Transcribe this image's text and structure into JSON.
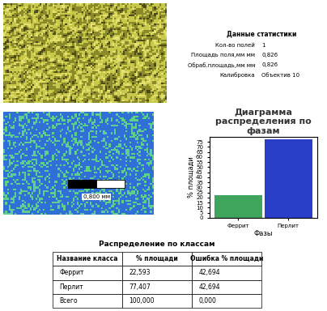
{
  "statistics": {
    "title": "Данные статистики",
    "rows": [
      [
        "Кол-во полей",
        "1"
      ],
      [
        "Площадь поля,мм мм",
        "0,826"
      ],
      [
        "Обраб.площадь,мм мм",
        "0,826"
      ],
      [
        "Калибровка",
        "Объектив 10"
      ]
    ]
  },
  "scale_bar": "0,800 мм",
  "chart_data": {
    "type": "bar",
    "title": "Диаграмма распределения по фазам",
    "categories": [
      "Феррит",
      "Перлит"
    ],
    "values": [
      22.593,
      77.407
    ],
    "colors": [
      "#3fa45c",
      "#2a3fc8"
    ],
    "xlabel": "Фазы",
    "ylabel": "% площади",
    "ylim": [
      0,
      80
    ],
    "yticks": [
      0,
      5,
      10,
      15,
      20,
      25,
      30,
      35,
      40,
      45,
      50,
      55,
      60,
      65,
      70,
      75
    ]
  },
  "table": {
    "title": "Распределение по классам",
    "header": [
      "Название класса",
      "% площади",
      "Ошибка % площади"
    ],
    "rows": [
      [
        "Феррит",
        "22,593",
        "42,694"
      ],
      [
        "Перлит",
        "77,407",
        "42,694"
      ],
      [
        "Всего",
        "100,000",
        "0,000"
      ]
    ]
  }
}
